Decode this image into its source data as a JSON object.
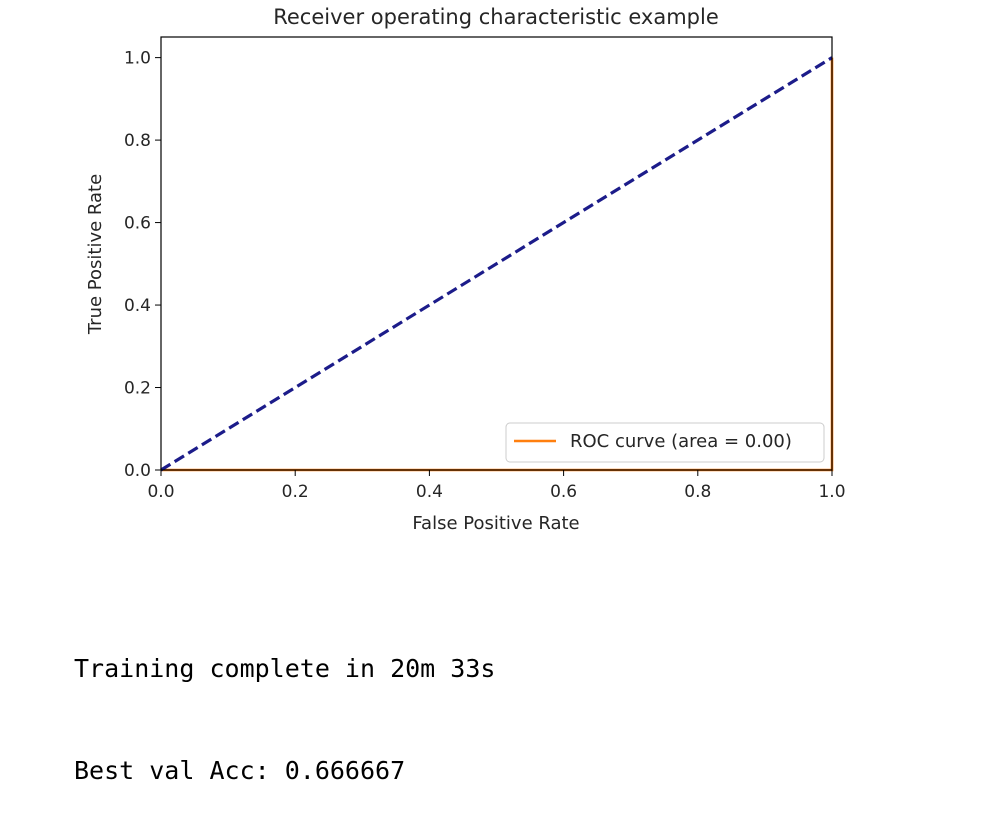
{
  "chart_data": {
    "type": "line",
    "title": "Receiver operating characteristic example",
    "xlabel": "False Positive Rate",
    "ylabel": "True Positive Rate",
    "xlim": [
      0.0,
      1.0
    ],
    "ylim": [
      0.0,
      1.05
    ],
    "xticks": [
      "0.0",
      "0.2",
      "0.4",
      "0.6",
      "0.8",
      "1.0"
    ],
    "yticks": [
      "0.0",
      "0.2",
      "0.4",
      "0.6",
      "0.8",
      "1.0"
    ],
    "grid": false,
    "legend_position": "lower-right",
    "series": [
      {
        "name": "ROC curve (area = 0.00)",
        "style": "solid",
        "color": "#ff7f0e",
        "x": [
          0.0,
          1.0,
          1.0
        ],
        "y": [
          0.0,
          0.0,
          1.0
        ]
      },
      {
        "style": "dashed",
        "color": "#1c1c8a",
        "x": [
          0.0,
          1.0
        ],
        "y": [
          0.0,
          1.0
        ]
      }
    ]
  },
  "output": {
    "lines": [
      "Training complete in 20m 33s",
      "Best val Acc: 0.666667"
    ]
  }
}
